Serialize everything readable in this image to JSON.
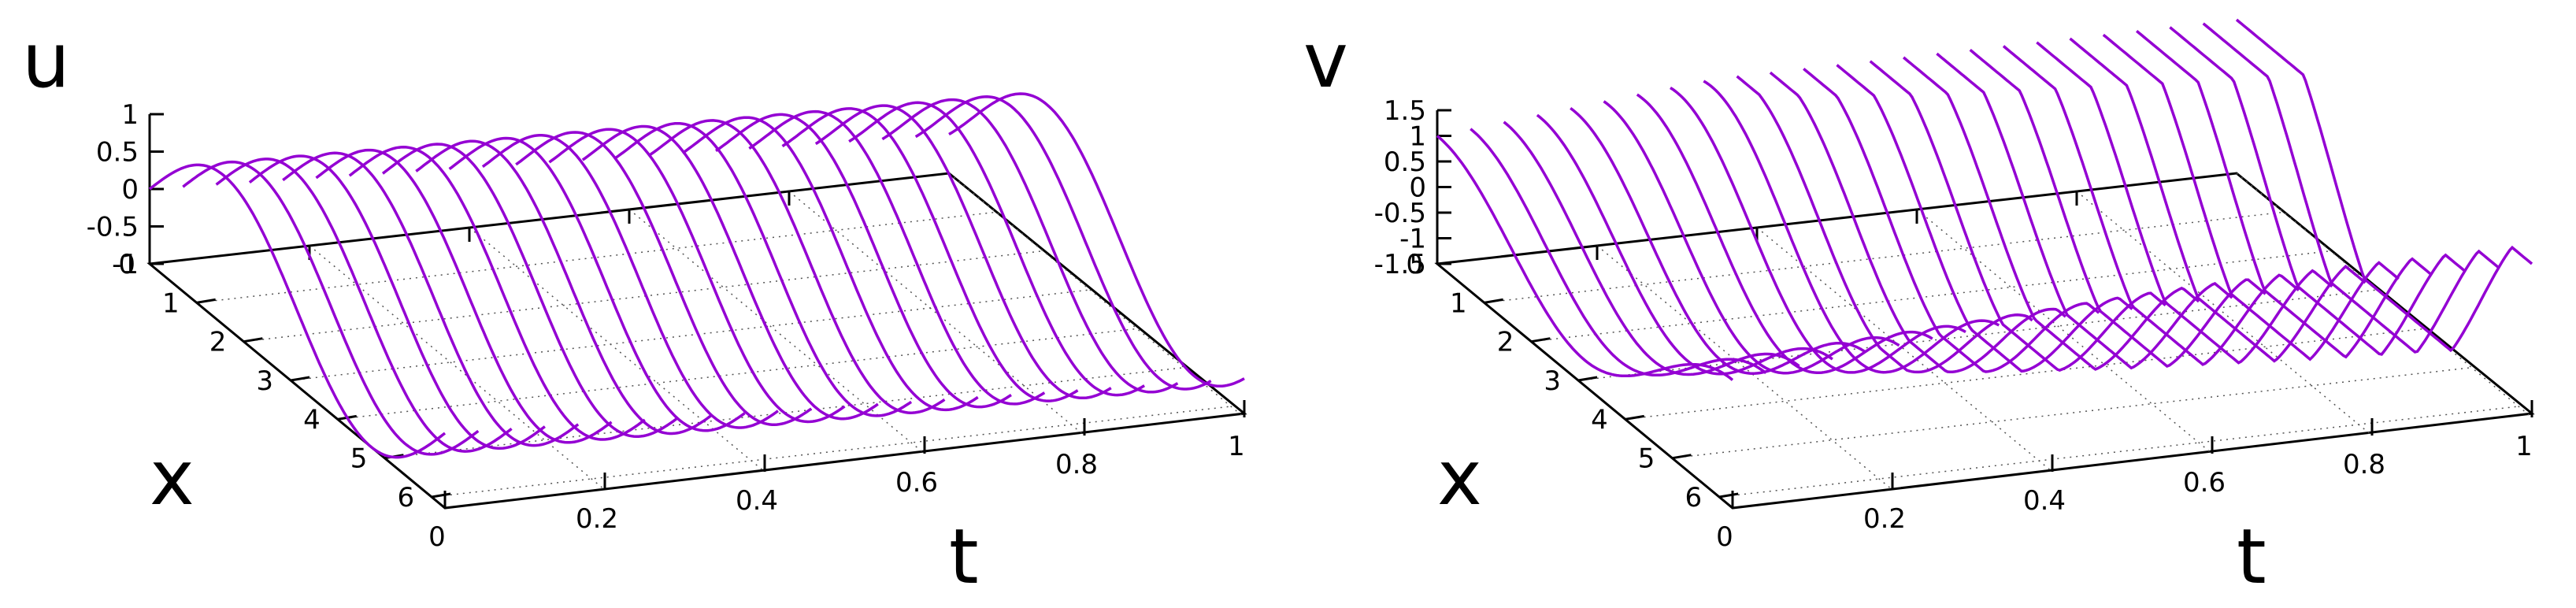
{
  "chart_data": [
    {
      "type": "surface",
      "zlabel": "u",
      "xlabel": "x",
      "tlabel": "t",
      "z_ticks": [
        "1",
        "0.5",
        "0",
        "-0.5",
        "-1"
      ],
      "x_ticks": [
        "0",
        "1",
        "2",
        "3",
        "4",
        "5",
        "6"
      ],
      "t_ticks": [
        "0",
        "0.2",
        "0.4",
        "0.6",
        "0.8",
        "1"
      ],
      "x_range": [
        0,
        6.283
      ],
      "t_range": [
        0,
        1
      ],
      "z_range": [
        -1,
        1
      ],
      "function": "u(x,t) = sin(x - 0.5 t)",
      "t_samples": 25,
      "grid": true,
      "line_color": "#9400D3"
    },
    {
      "type": "surface",
      "zlabel": "v",
      "xlabel": "x",
      "tlabel": "t",
      "z_ticks": [
        "1.5",
        "1",
        "0.5",
        "0",
        "-0.5",
        "-1",
        "-1.5"
      ],
      "x_ticks": [
        "0",
        "1",
        "2",
        "3",
        "4",
        "5",
        "6"
      ],
      "t_ticks": [
        "0",
        "0.2",
        "0.4",
        "0.6",
        "0.8",
        "1"
      ],
      "x_range": [
        0,
        6.283
      ],
      "t_range": [
        0,
        1
      ],
      "z_range": [
        -1.5,
        1.5
      ],
      "function": "v(x,t) = cos(x - 0.5 t) * (1 + 1.5 t)",
      "t_samples": 25,
      "grid": true,
      "line_color": "#9400D3"
    }
  ]
}
